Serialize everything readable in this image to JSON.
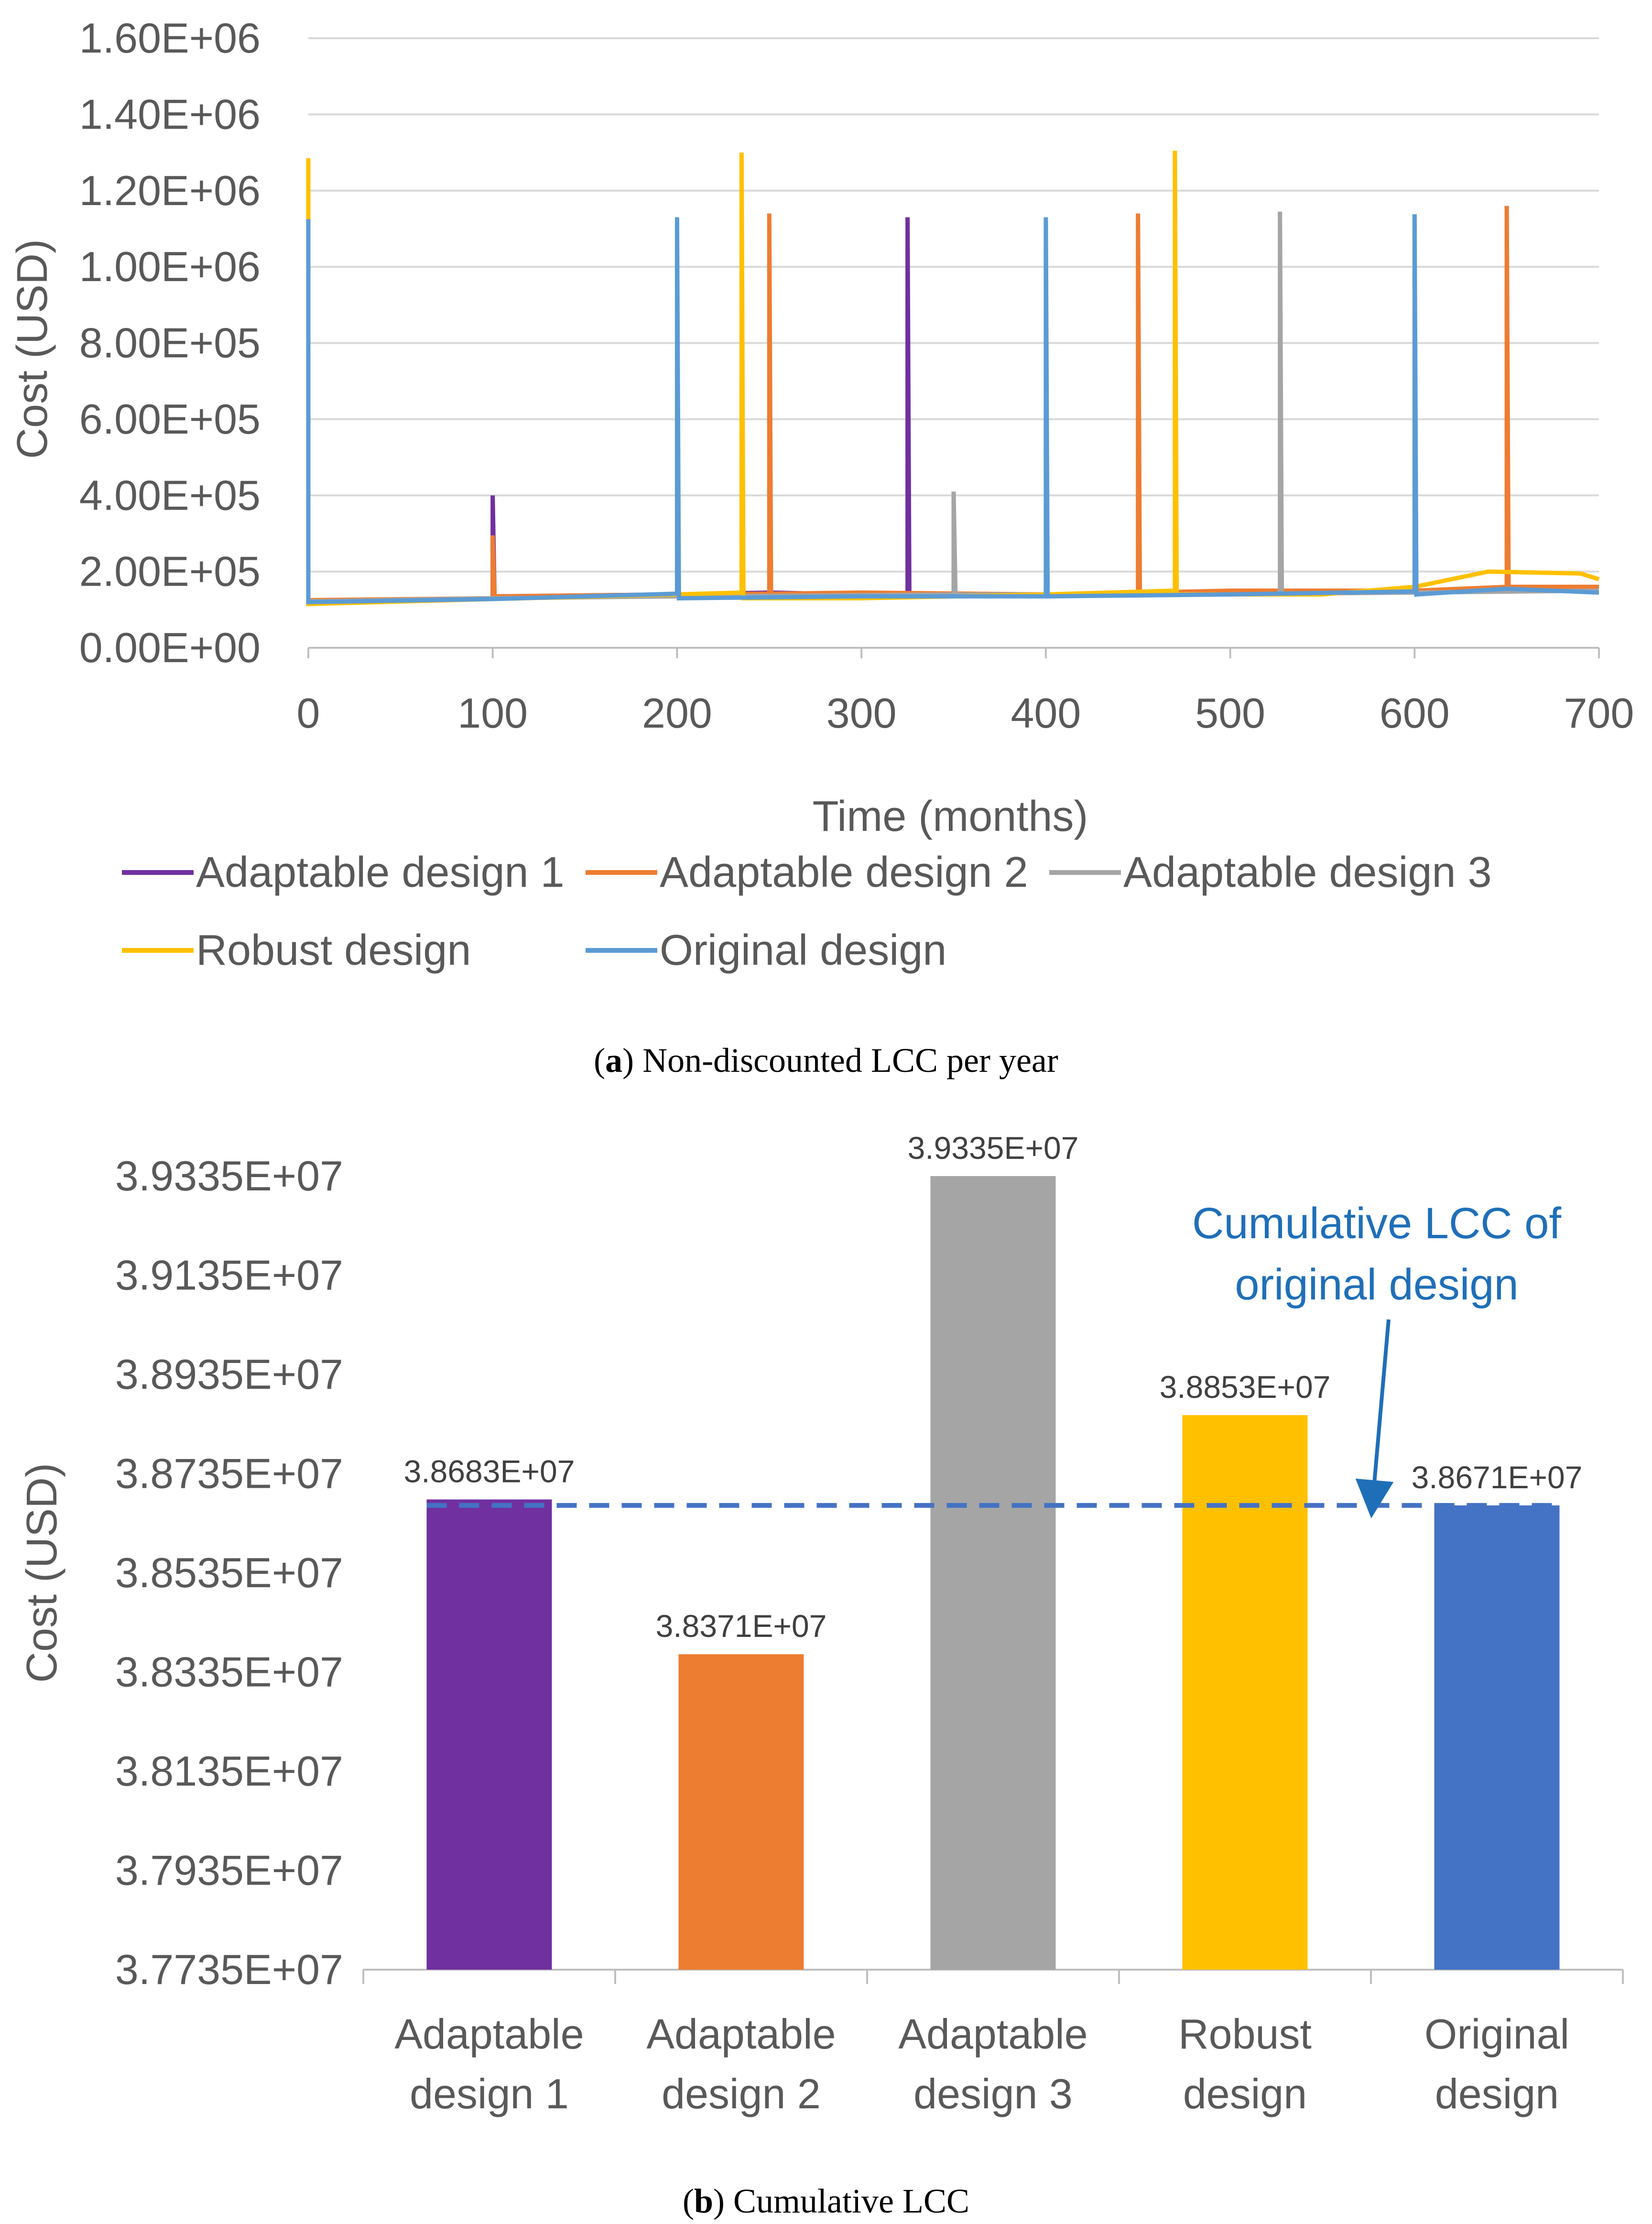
{
  "chart_data": [
    {
      "type": "line",
      "xlabel": "Time (months)",
      "ylabel": "Cost (USD)",
      "xlim": [
        0,
        700
      ],
      "ylim": [
        0,
        1600000
      ],
      "x_ticks": [
        "0",
        "100",
        "200",
        "300",
        "400",
        "500",
        "600",
        "700"
      ],
      "y_ticks": [
        "0.00E+00",
        "2.00E+05",
        "4.00E+05",
        "6.00E+05",
        "8.00E+05",
        "1.00E+06",
        "1.20E+06",
        "1.40E+06",
        "1.60E+06"
      ],
      "grid": "horizontal",
      "legend_position": "bottom",
      "caption_letter": "a",
      "caption_text": "Non-discounted LCC per year",
      "series": [
        {
          "name": "Adaptable design 1",
          "color": "#7030a0",
          "points": [
            [
              0,
              120000
            ],
            [
              100,
              130000
            ],
            [
              100,
              400000
            ],
            [
              101,
              135000
            ],
            [
              200,
              140000
            ],
            [
              250,
              145000
            ],
            [
              300,
              140000
            ],
            [
              325,
              140000
            ],
            [
              325,
              1130000
            ],
            [
              326,
              140000
            ],
            [
              400,
              140000
            ],
            [
              500,
              145000
            ],
            [
              600,
              150000
            ],
            [
              700,
              160000
            ]
          ]
        },
        {
          "name": "Adaptable design 2",
          "color": "#ed7d31",
          "points": [
            [
              0,
              125000
            ],
            [
              100,
              130000
            ],
            [
              100,
              295000
            ],
            [
              101,
              135000
            ],
            [
              200,
              140000
            ],
            [
              250,
              142000
            ],
            [
              250,
              1140000
            ],
            [
              251,
              142000
            ],
            [
              300,
              145000
            ],
            [
              400,
              140000
            ],
            [
              450,
              145000
            ],
            [
              450,
              1140000
            ],
            [
              451,
              145000
            ],
            [
              500,
              150000
            ],
            [
              600,
              150000
            ],
            [
              650,
              160000
            ],
            [
              650,
              1160000
            ],
            [
              651,
              160000
            ],
            [
              700,
              160000
            ]
          ]
        },
        {
          "name": "Adaptable design 3",
          "color": "#a5a5a5",
          "points": [
            [
              0,
              122000
            ],
            [
              100,
              130000
            ],
            [
              200,
              135000
            ],
            [
              300,
              138000
            ],
            [
              350,
              140000
            ],
            [
              350,
              410000
            ],
            [
              351,
              140000
            ],
            [
              400,
              140000
            ],
            [
              500,
              140000
            ],
            [
              527,
              142000
            ],
            [
              527,
              1145000
            ],
            [
              528,
              142000
            ],
            [
              600,
              145000
            ],
            [
              700,
              150000
            ]
          ]
        },
        {
          "name": "Robust design",
          "color": "#ffc000",
          "points": [
            [
              0,
              1285000
            ],
            [
              0,
              115000
            ],
            [
              100,
              128000
            ],
            [
              200,
              140000
            ],
            [
              235,
              145000
            ],
            [
              235,
              1300000
            ],
            [
              236,
              130000
            ],
            [
              300,
              130000
            ],
            [
              400,
              140000
            ],
            [
              470,
              150000
            ],
            [
              470,
              1305000
            ],
            [
              471,
              140000
            ],
            [
              550,
              140000
            ],
            [
              600,
              160000
            ],
            [
              620,
              180000
            ],
            [
              640,
              200000
            ],
            [
              690,
              195000
            ],
            [
              700,
              180000
            ]
          ]
        },
        {
          "name": "Original design",
          "color": "#5b9bd5",
          "points": [
            [
              0,
              1125000
            ],
            [
              0,
              120000
            ],
            [
              100,
              128000
            ],
            [
              200,
              142000
            ],
            [
              200,
              1130000
            ],
            [
              201,
              130000
            ],
            [
              300,
              135000
            ],
            [
              400,
              135000
            ],
            [
              400,
              1130000
            ],
            [
              401,
              135000
            ],
            [
              500,
              140000
            ],
            [
              600,
              148000
            ],
            [
              600,
              1138000
            ],
            [
              601,
              140000
            ],
            [
              650,
              155000
            ],
            [
              700,
              145000
            ]
          ]
        }
      ]
    },
    {
      "type": "bar",
      "ylabel": "Cost (USD)",
      "ylim": [
        37735000,
        39335000
      ],
      "y_ticks": [
        "3.7735E+07",
        "3.7935E+07",
        "3.8135E+07",
        "3.8335E+07",
        "3.8535E+07",
        "3.8735E+07",
        "3.8935E+07",
        "3.9135E+07",
        "3.9335E+07"
      ],
      "categories": [
        [
          "Adaptable",
          "design 1"
        ],
        [
          "Adaptable",
          "design 2"
        ],
        [
          "Adaptable",
          "design 3"
        ],
        [
          "Robust",
          "design"
        ],
        [
          "Original",
          "design"
        ]
      ],
      "values": [
        38683000,
        38371000,
        39335000,
        38853000,
        38671000
      ],
      "value_labels": [
        "3.8683E+07",
        "3.8371E+07",
        "3.9335E+07",
        "3.8853E+07",
        "3.8671E+07"
      ],
      "colors": [
        "#7030a0",
        "#ed7d31",
        "#a5a5a5",
        "#ffc000",
        "#4472c4"
      ],
      "reference_line": {
        "value": 38671000,
        "color": "#4472c4",
        "style": "dashed"
      },
      "annotation": {
        "lines": [
          "Cumulative LCC of",
          "original design"
        ],
        "color": "#1f6fb8"
      },
      "caption_letter": "b",
      "caption_text": "Cumulative LCC"
    }
  ]
}
